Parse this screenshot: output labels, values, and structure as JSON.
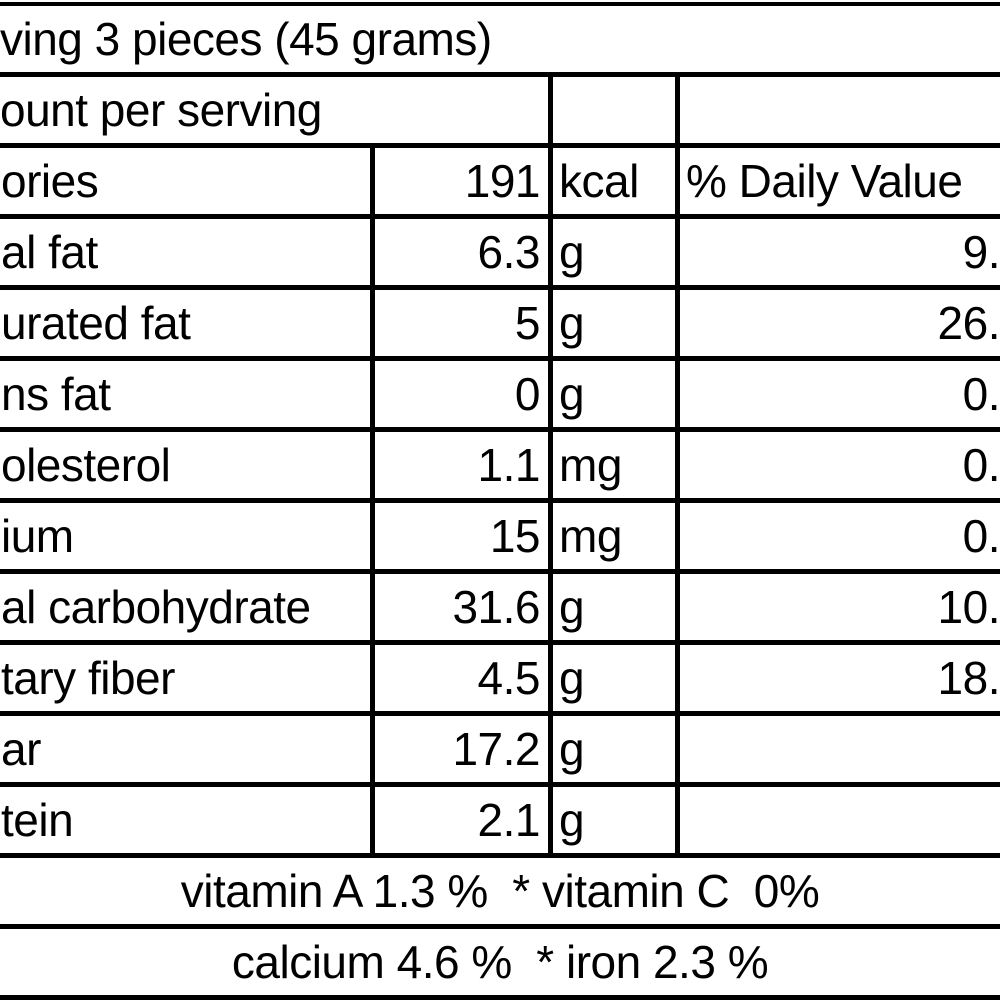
{
  "colors": {
    "border": "#000000",
    "background": "#ffffff",
    "text": "#000000"
  },
  "header": {
    "serving_line": "ving 3 pieces (45 grams)",
    "amount_line": "ount per serving"
  },
  "rows": [
    {
      "label": "ories",
      "value": "191",
      "unit": "kcal",
      "dv": "% Daily Value"
    },
    {
      "label": "al fat",
      "value": "6.3",
      "unit": "g",
      "dv": "9."
    },
    {
      "label": "urated fat",
      "value": "5",
      "unit": "g",
      "dv": "26."
    },
    {
      "label": "ns fat",
      "value": "0",
      "unit": "g",
      "dv": "0."
    },
    {
      "label": "olesterol",
      "value": "1.1",
      "unit": "mg",
      "dv": "0."
    },
    {
      "label": "ium",
      "value": "15",
      "unit": "mg",
      "dv": "0."
    },
    {
      "label": "al carbohydrate",
      "value": "31.6",
      "unit": "g",
      "dv": "10."
    },
    {
      "label": "tary fiber",
      "value": "4.5",
      "unit": "g",
      "dv": "18."
    },
    {
      "label": "ar",
      "value": "17.2",
      "unit": "g",
      "dv": ""
    },
    {
      "label": "tein",
      "value": "2.1",
      "unit": "g",
      "dv": ""
    }
  ],
  "footer": {
    "vitamins_line": "vitamin A 1.3 %  * vitamin C  0%",
    "minerals_line": "calcium 4.6 %  * iron 2.3 %"
  }
}
